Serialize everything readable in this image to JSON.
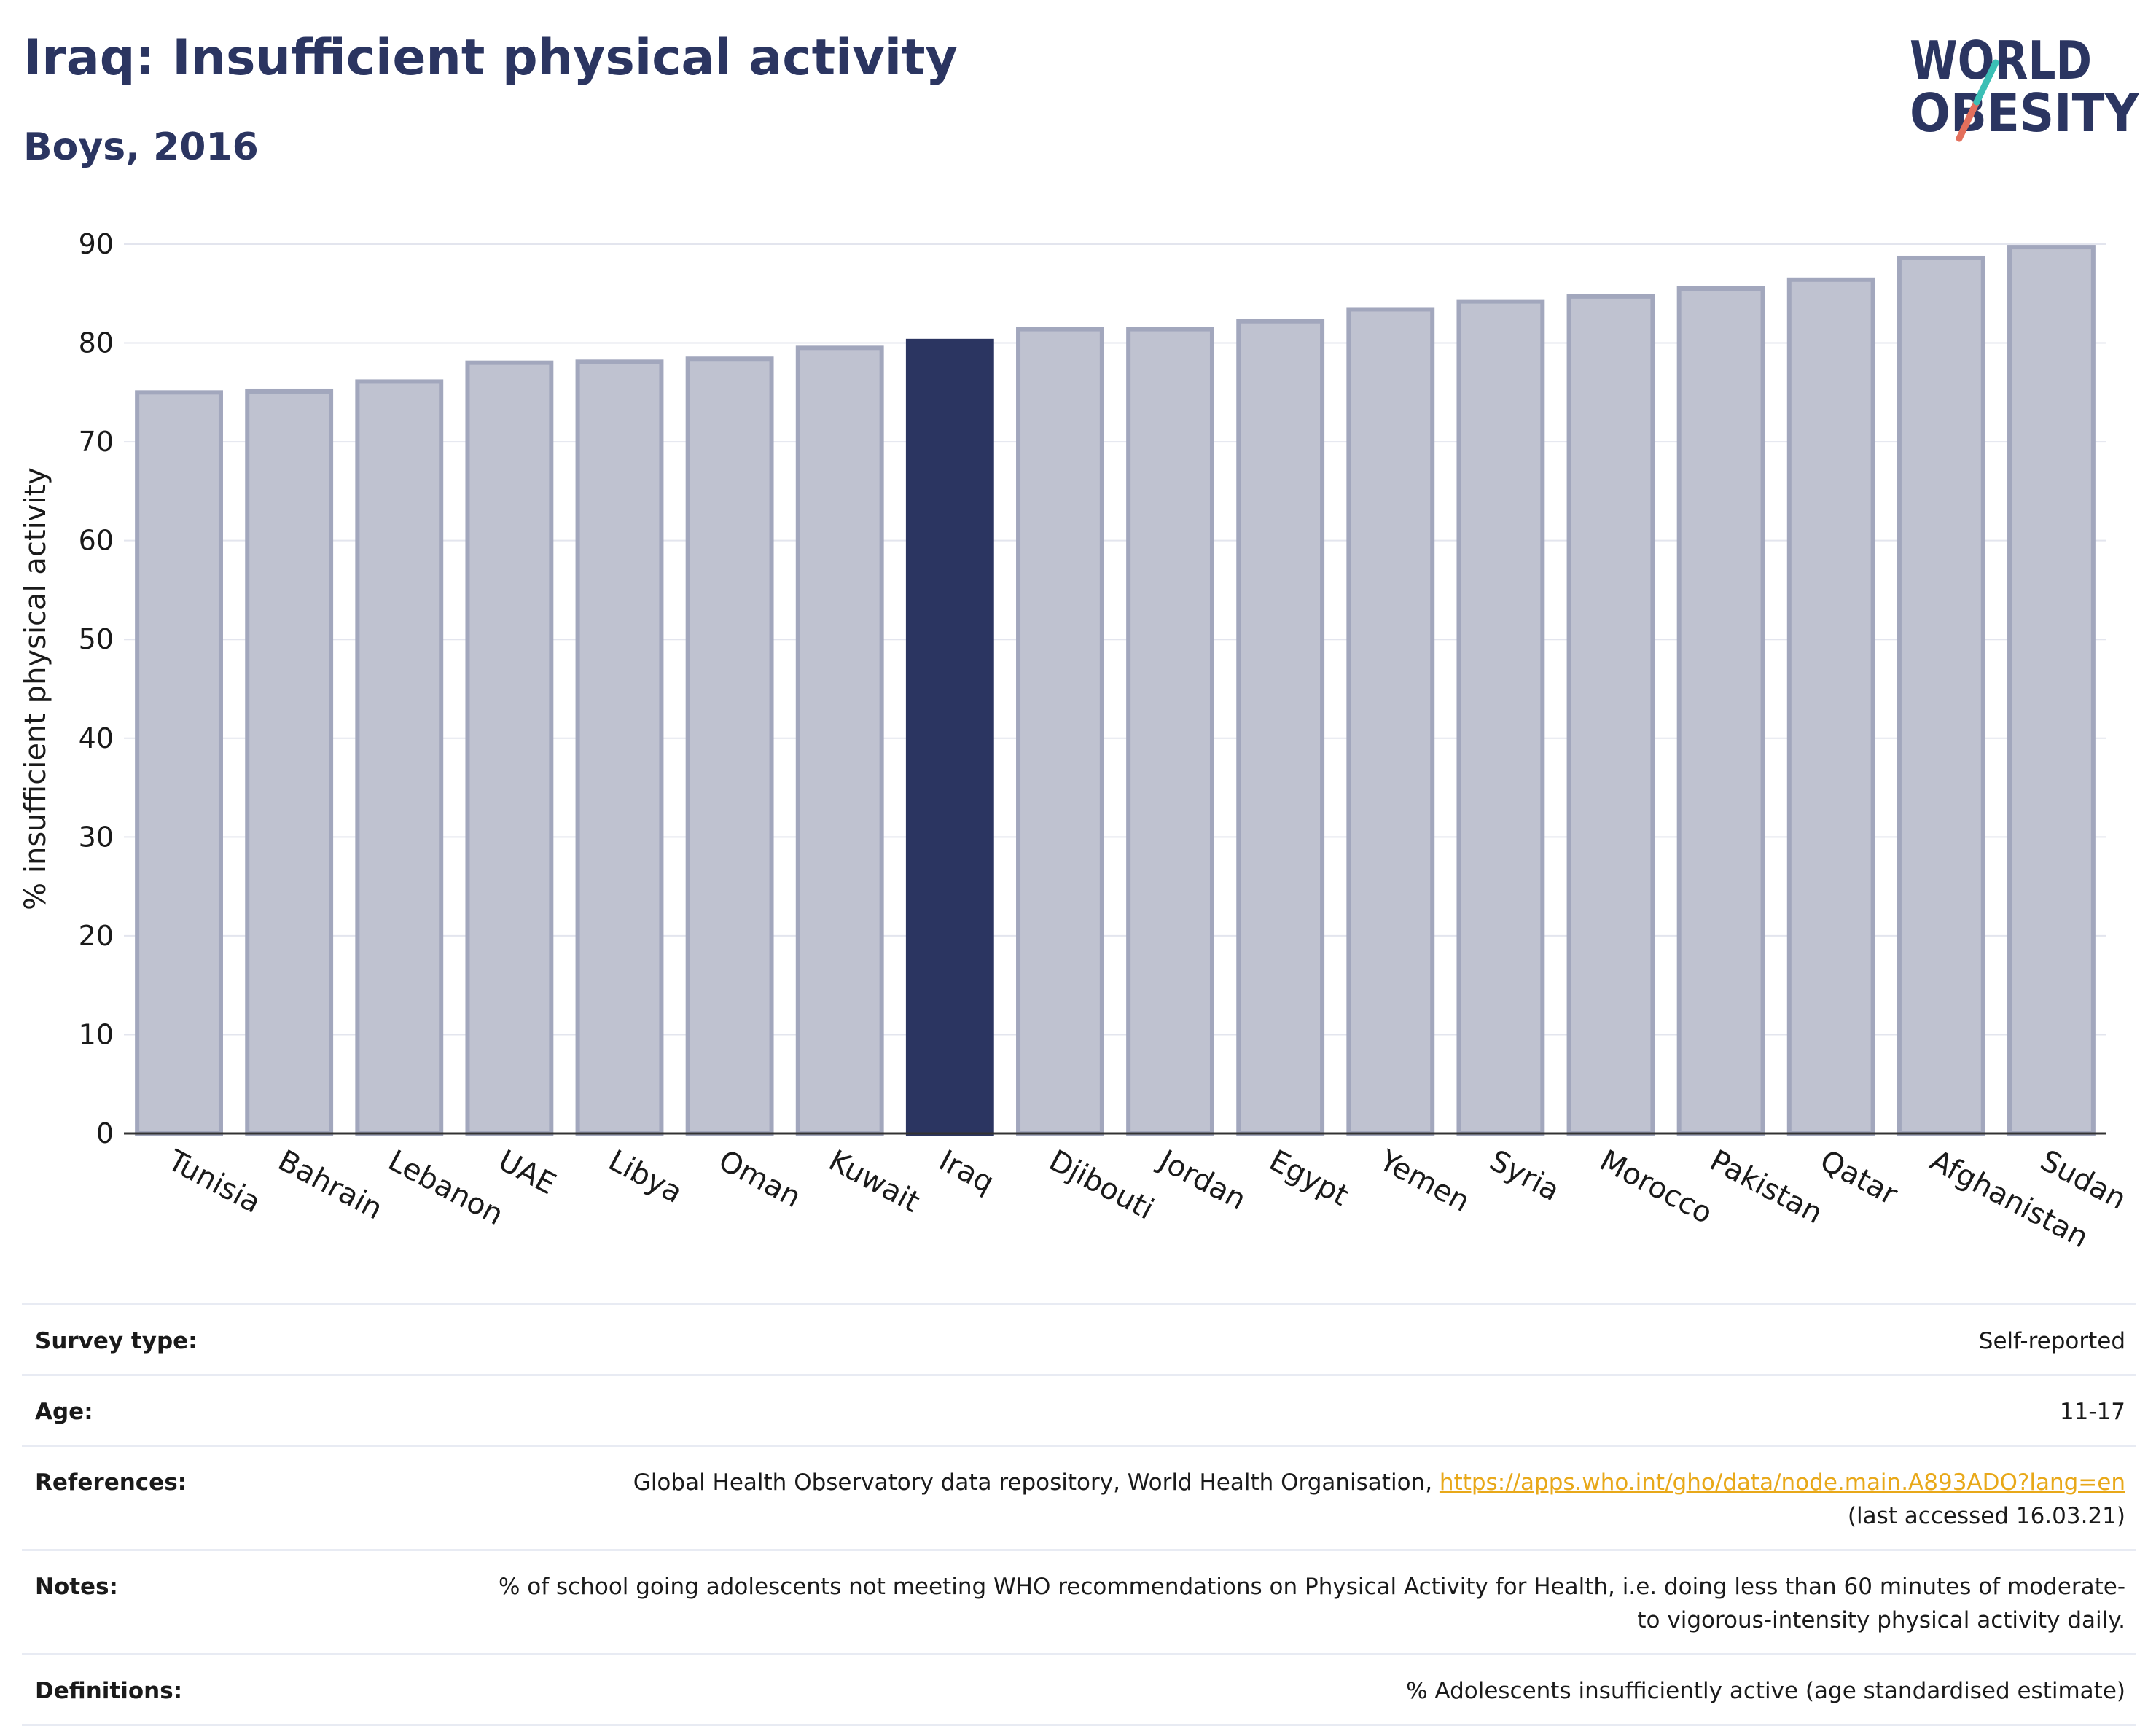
{
  "header": {
    "title": "Iraq: Insufficient physical activity",
    "subtitle": "Boys, 2016"
  },
  "logo": {
    "line1": "WORLD",
    "line2": "OBESITY"
  },
  "colors": {
    "highlight": "#2b3561",
    "bar_fill": "#bfc2d0",
    "bar_stroke": "#a2a7bd",
    "link": "#e8a819",
    "logo_slash_top": "#3bbfb5",
    "logo_slash_bottom": "#e36f5c"
  },
  "chart_data": {
    "type": "bar",
    "ylabel": "% insufficient physical activity",
    "ylim": [
      0,
      90
    ],
    "yticks": [
      0,
      10,
      20,
      30,
      40,
      50,
      60,
      70,
      80,
      90
    ],
    "grid": true,
    "highlight_category": "Iraq",
    "categories": [
      "Tunisia",
      "Bahrain",
      "Lebanon",
      "UAE",
      "Libya",
      "Oman",
      "Kuwait",
      "Iraq",
      "Djibouti",
      "Jordan",
      "Egypt",
      "Yemen",
      "Syria",
      "Morocco",
      "Pakistan",
      "Qatar",
      "Afghanistan",
      "Sudan"
    ],
    "values": [
      75.0,
      75.1,
      76.1,
      78.0,
      78.1,
      78.4,
      79.5,
      80.2,
      81.4,
      81.4,
      82.2,
      83.4,
      84.2,
      84.7,
      85.5,
      86.4,
      88.6,
      89.7
    ]
  },
  "info": {
    "survey_type_label": "Survey type:",
    "survey_type_value": "Self-reported",
    "age_label": "Age:",
    "age_value": "11-17",
    "references_label": "References:",
    "references_text": "Global Health Observatory data repository, World Health Organisation, ",
    "references_link": "https://apps.who.int/gho/data/node.main.A893ADO?lang=en",
    "references_accessed": "(last accessed 16.03.21)",
    "notes_label": "Notes:",
    "notes_value": "% of school going adolescents not meeting WHO recommendations on Physical Activity for Health, i.e. doing less than 60 minutes of moderate- to vigorous-intensity physical activity daily.",
    "definitions_label": "Definitions:",
    "definitions_value": "% Adolescents insufficiently active (age standardised estimate)"
  }
}
